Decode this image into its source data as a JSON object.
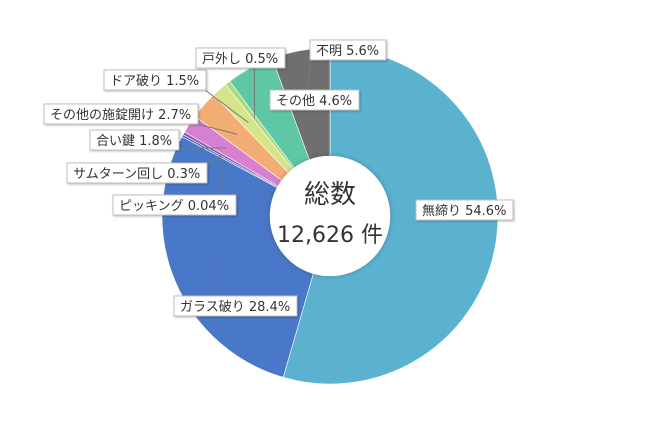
{
  "center": {
    "title": "総数",
    "value": "12,626 件"
  },
  "chart_data": {
    "type": "pie",
    "variant": "donut",
    "start_angle_deg": 0,
    "direction": "clockwise",
    "slices": [
      {
        "label": "無締り",
        "value": 54.6,
        "display": "無締り 54.6%",
        "color": "#5bb2cf"
      },
      {
        "label": "ガラス破り",
        "value": 28.4,
        "display": "ガラス破り 28.4%",
        "color": "#4a78c8"
      },
      {
        "label": "ピッキング",
        "value": 0.04,
        "display": "ピッキング 0.04%",
        "color": "#2e5aa8"
      },
      {
        "label": "サムターン回し",
        "value": 0.3,
        "display": "サムターン回し 0.3%",
        "color": "#8e5fb7"
      },
      {
        "label": "合い鍵",
        "value": 1.8,
        "display": "合い鍵 1.8%",
        "color": "#d77fd0"
      },
      {
        "label": "その他の施錠開け",
        "value": 2.7,
        "display": "その他の施錠開け 2.7%",
        "color": "#f2ad74"
      },
      {
        "label": "ドア破り",
        "value": 1.5,
        "display": "ドア破り 1.5%",
        "color": "#d6e58a"
      },
      {
        "label": "戸外し",
        "value": 0.5,
        "display": "戸外し 0.5%",
        "color": "#a9d97b"
      },
      {
        "label": "その他",
        "value": 4.6,
        "display": "その他 4.6%",
        "color": "#5fc6a6"
      },
      {
        "label": "不明",
        "value": 5.6,
        "display": "不明 5.6%",
        "color": "#6f6f6f"
      }
    ]
  }
}
